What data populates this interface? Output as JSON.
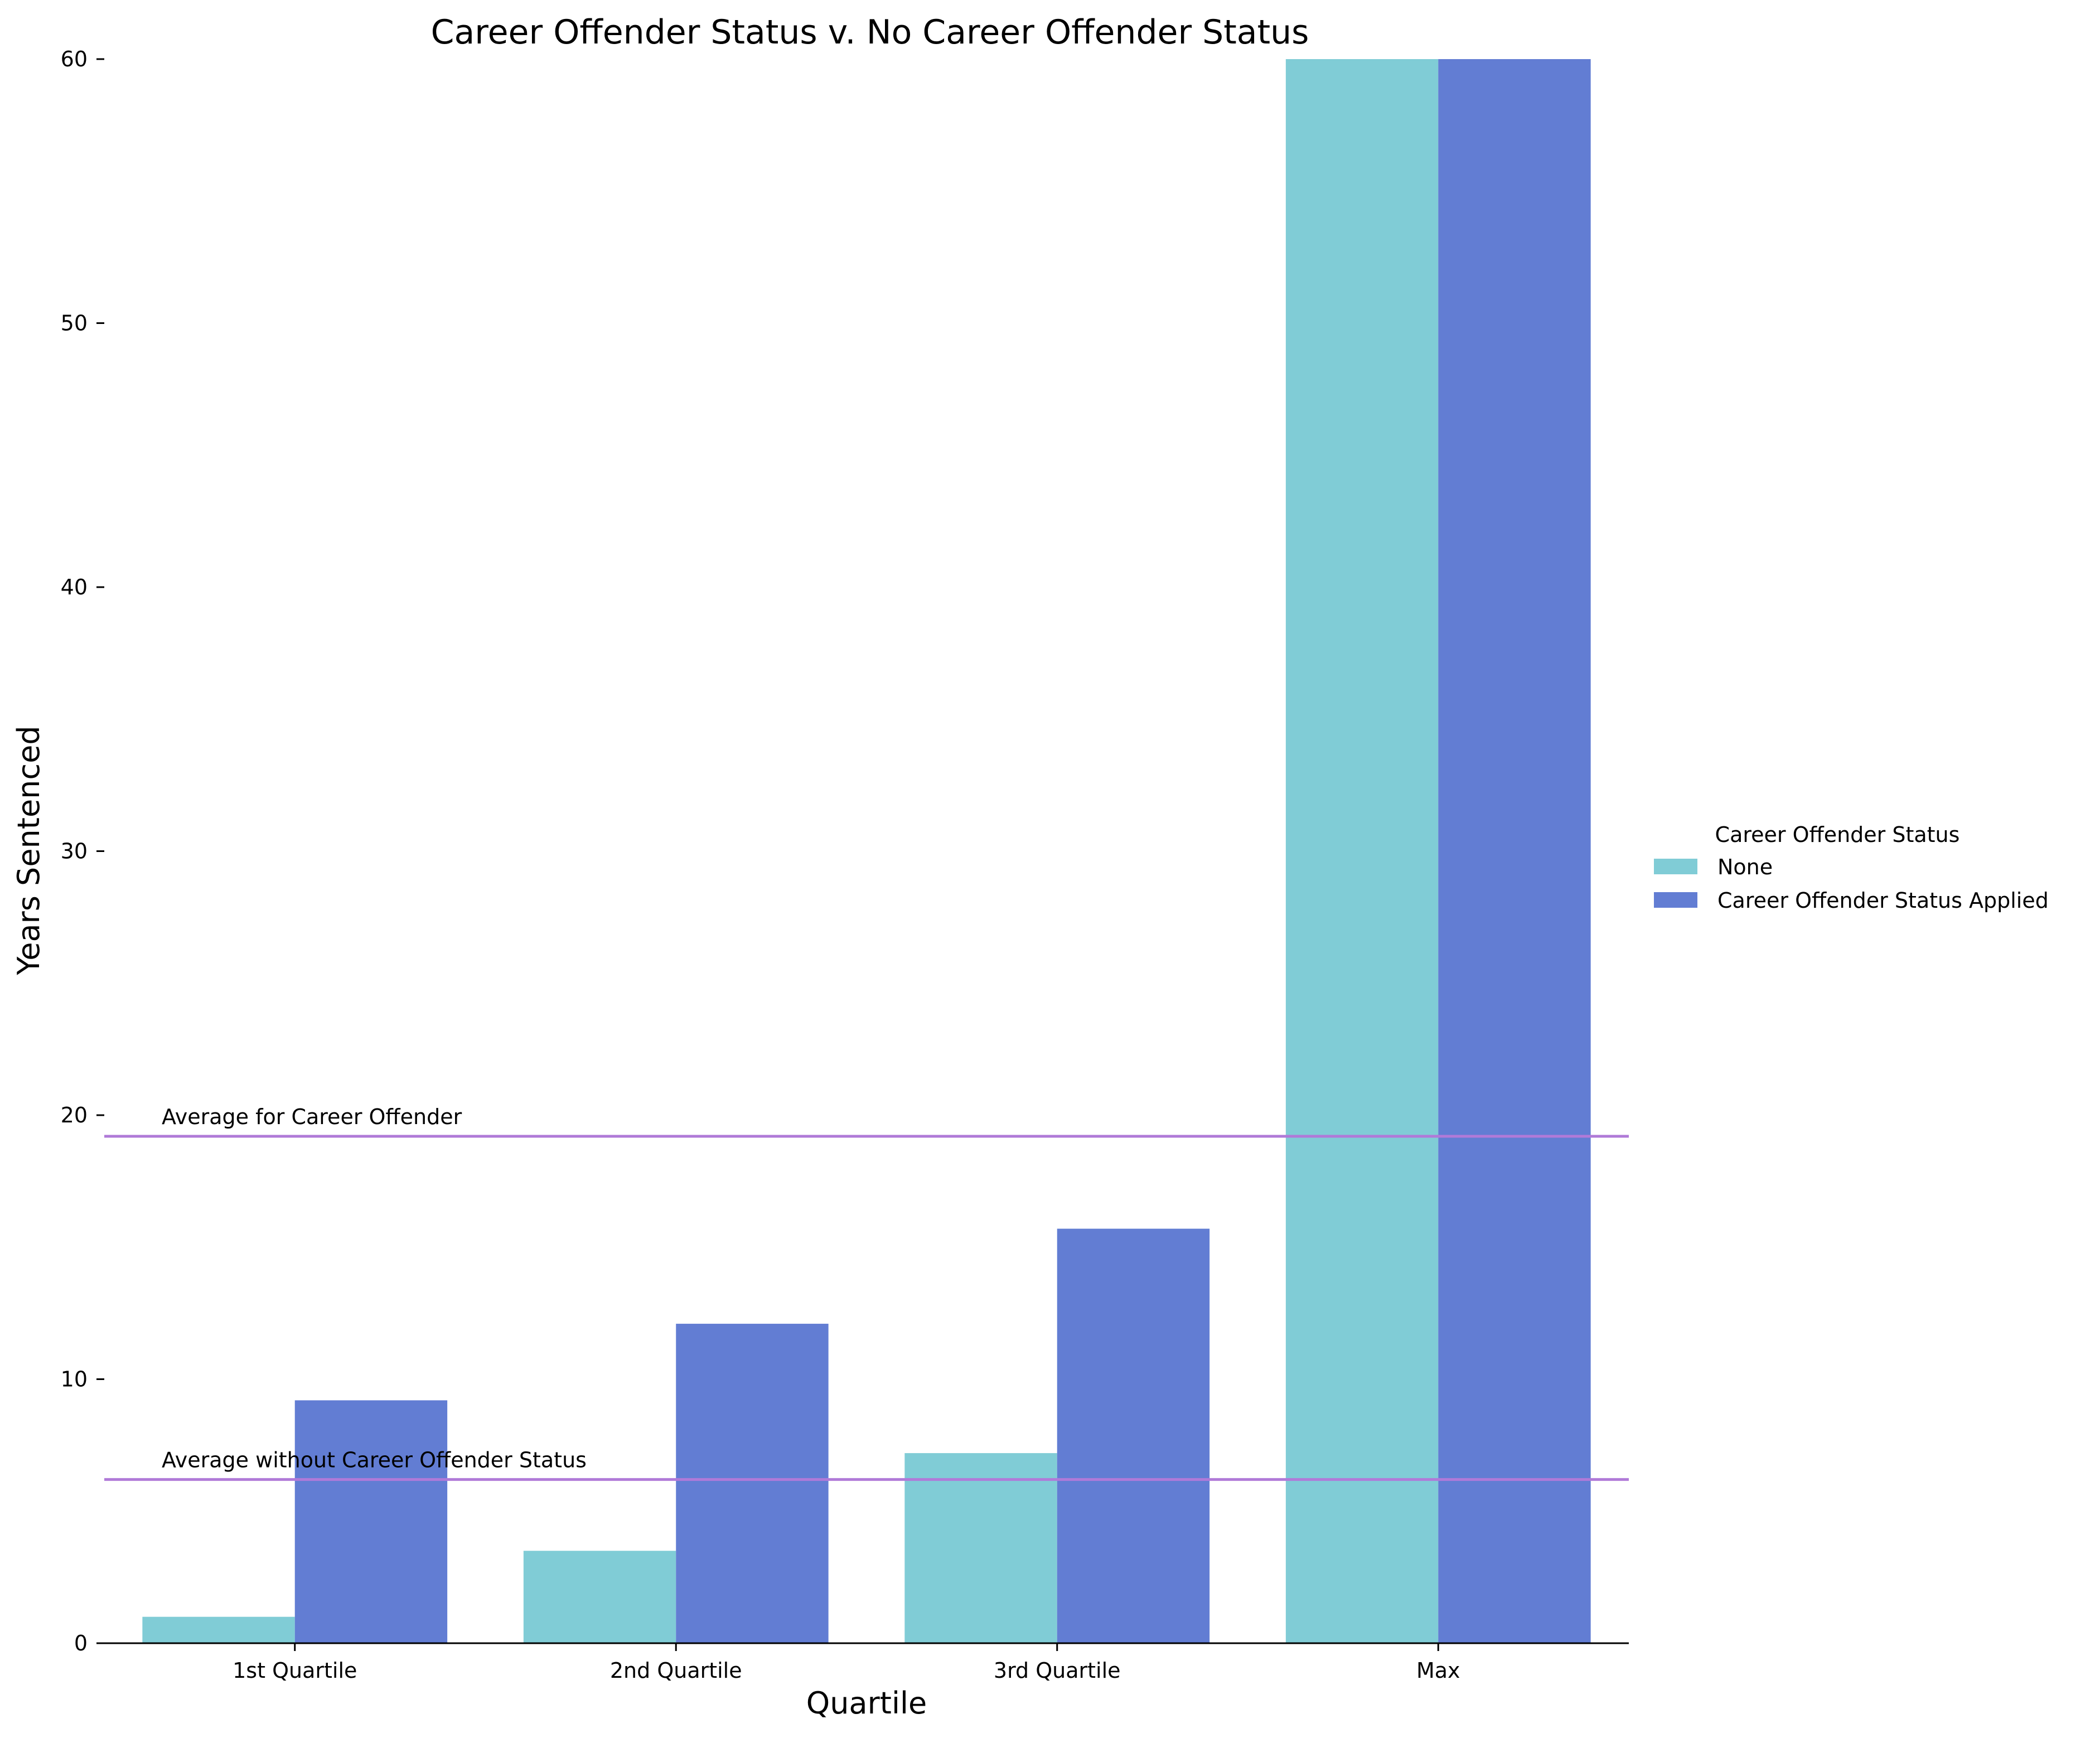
{
  "chart_data": {
    "type": "bar",
    "title": "Career Offender Status v. No Career Offender Status",
    "xlabel": "Quartile",
    "ylabel": "Years Sentenced",
    "categories": [
      "1st Quartile",
      "2nd Quartile",
      "3rd Quartile",
      "Max"
    ],
    "series": [
      {
        "name": "None",
        "color": "#80ccd6",
        "values": [
          1.0,
          3.5,
          7.2,
          60.0
        ]
      },
      {
        "name": "Career Offender Status Applied",
        "color": "#627dd3",
        "values": [
          9.2,
          12.1,
          15.7,
          60.0
        ]
      }
    ],
    "ylim": [
      0,
      60
    ],
    "yticks": [
      0,
      10,
      20,
      30,
      40,
      50,
      60
    ],
    "grid": false,
    "legend": {
      "title": "Career Offender Status",
      "placement": "right"
    },
    "reference_lines": [
      {
        "label": "Average for Career Offender",
        "value": 19.2,
        "color": "#b07ad8"
      },
      {
        "label": "Average without Career Offender Status",
        "value": 6.2,
        "color": "#b07ad8"
      }
    ]
  }
}
